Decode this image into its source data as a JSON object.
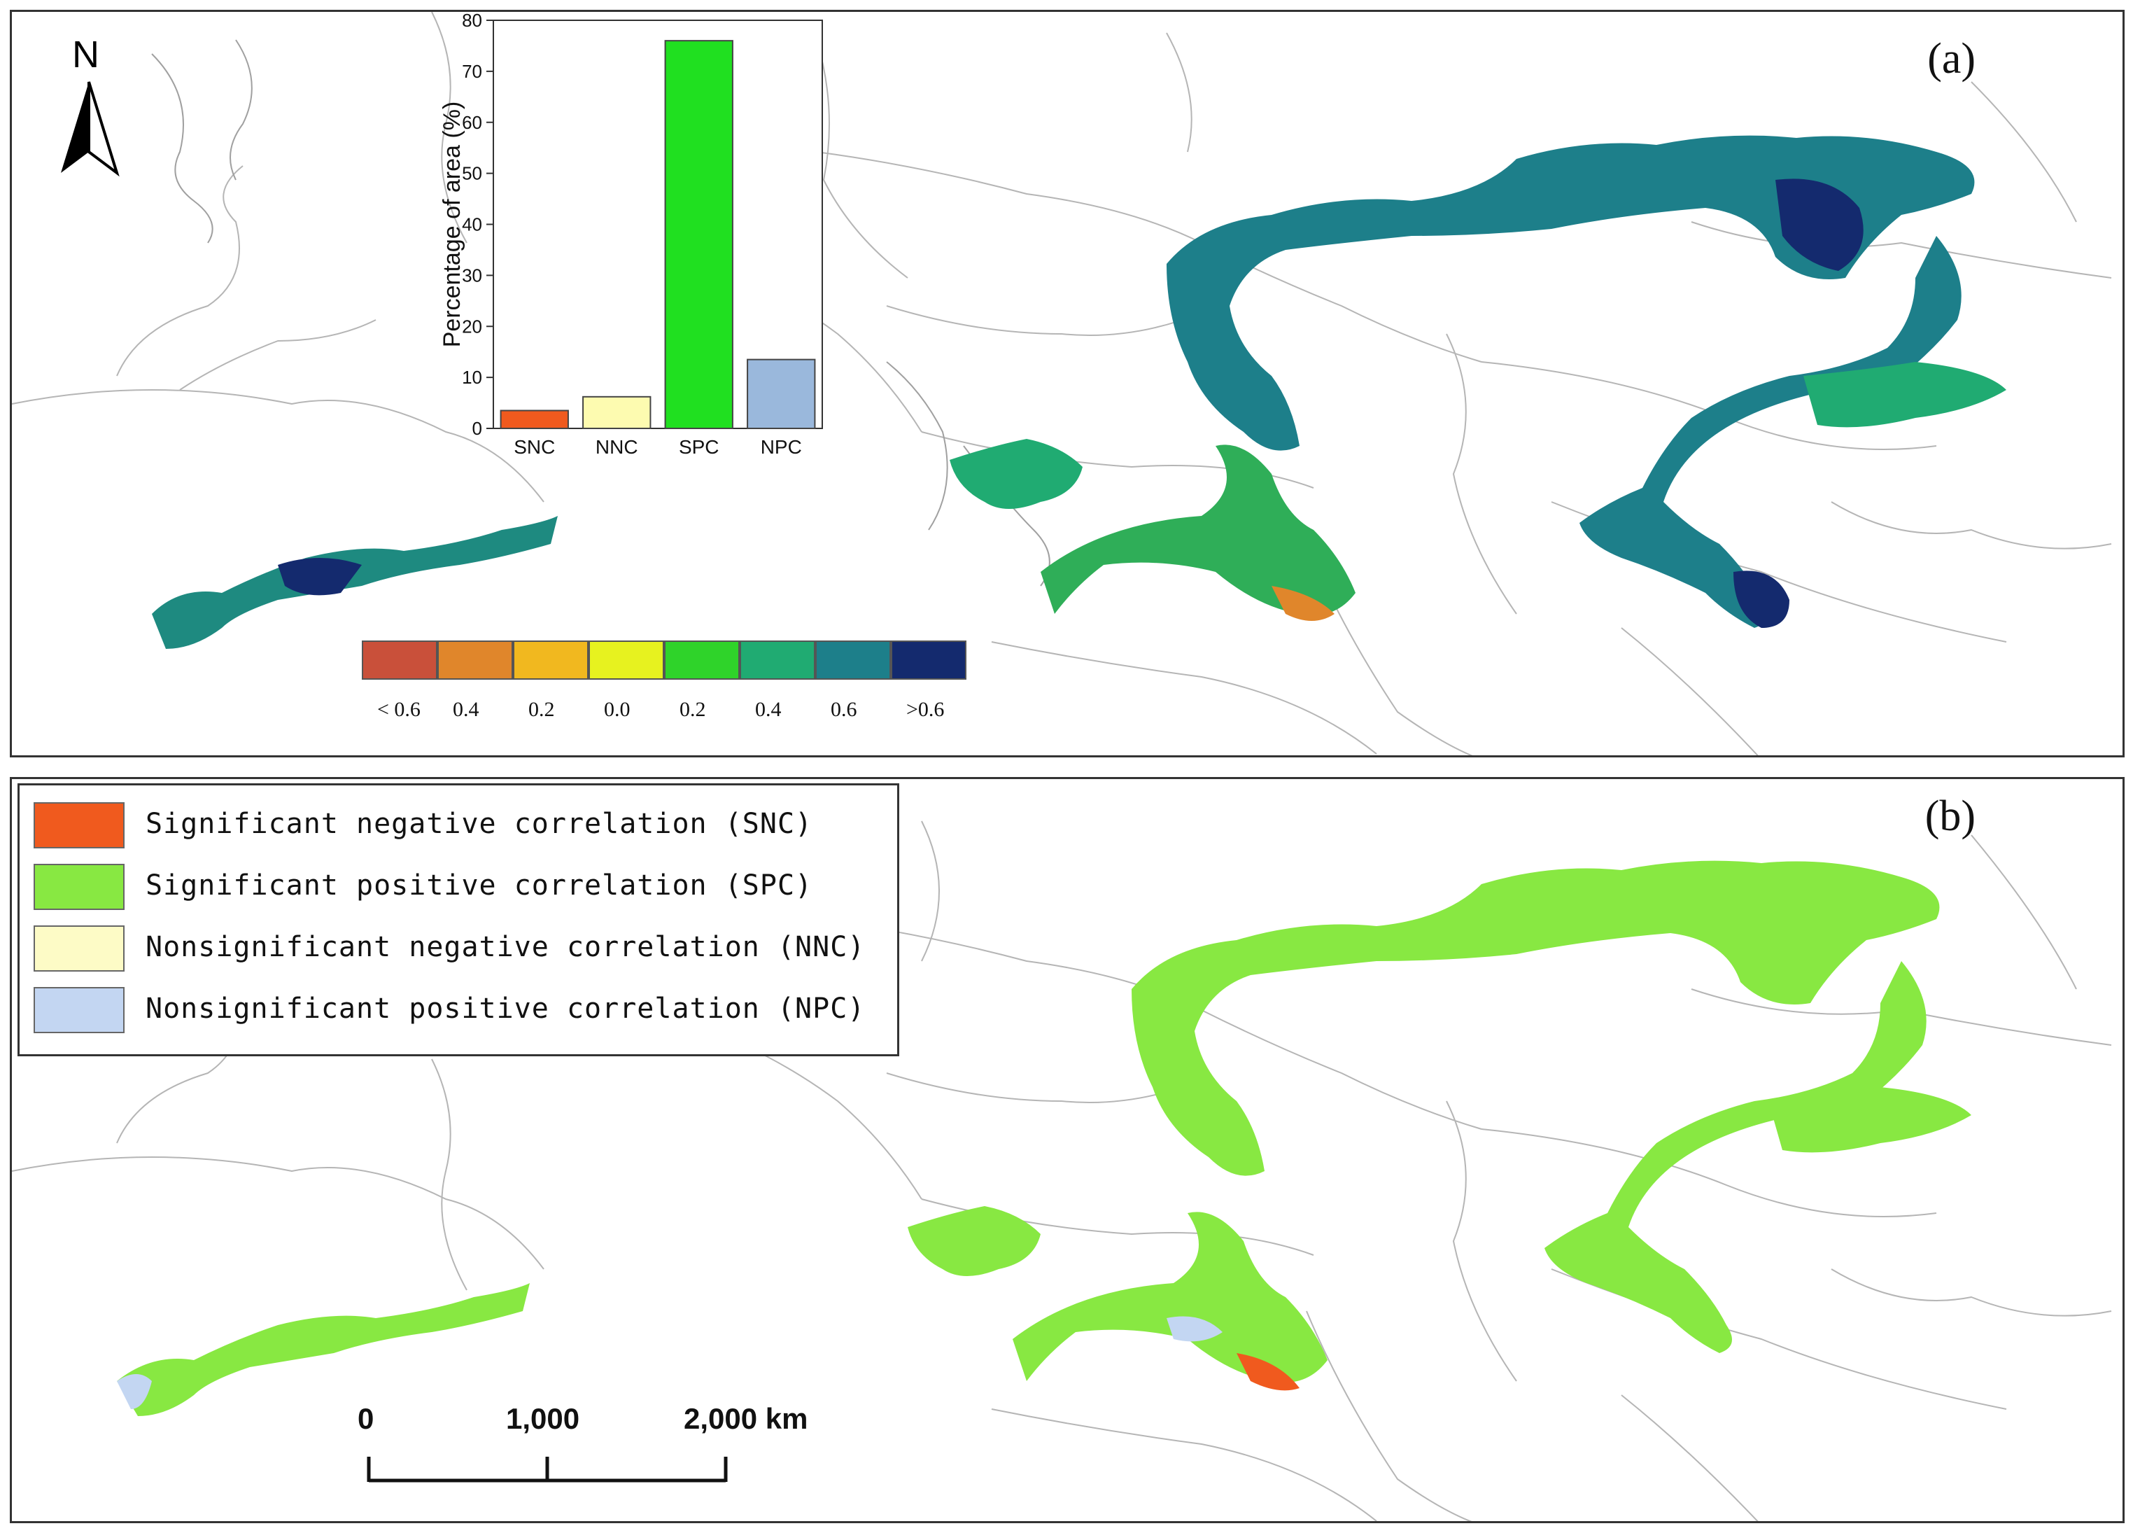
{
  "panel_a": {
    "label": "(a)",
    "north_label": "N",
    "colorbar": {
      "colors": [
        "#c9503a",
        "#e0862b",
        "#f1b81f",
        "#e7f21f",
        "#2fd32a",
        "#20ab72",
        "#1d7f8a",
        "#142a6e"
      ],
      "labels": [
        "< 0.6",
        "0.4",
        "0.2",
        "0.0",
        "0.2",
        "0.4",
        "0.6",
        ">0.6"
      ]
    },
    "inset_chart": {
      "chart_data": {
        "type": "bar",
        "categories": [
          "SNC",
          "NNC",
          "SPC",
          "NPC"
        ],
        "values": [
          3.5,
          6.2,
          76,
          13.5
        ],
        "colors": [
          "#f05a1e",
          "#fdfbb0",
          "#20e020",
          "#9ab8dc"
        ],
        "ylabel": "Percentage of area (%)",
        "ylim": [
          0,
          80
        ],
        "yticks": [
          0,
          10,
          20,
          30,
          40,
          50,
          60,
          70,
          80
        ]
      }
    }
  },
  "panel_b": {
    "label": "(b)",
    "legend": [
      {
        "color": "#f05a1e",
        "label": "Significant negative correlation (SNC)"
      },
      {
        "color": "#88e842",
        "label": "Significant positive correlation (SPC)"
      },
      {
        "color": "#fdfbc6",
        "label": "Nonsignificant negative correlation (NNC)"
      },
      {
        "color": "#c3d6f2",
        "label": "Nonsignificant positive correlation (NPC)"
      }
    ],
    "scale_bar": {
      "labels": [
        "0",
        "1,000",
        "2,000 km"
      ]
    }
  }
}
